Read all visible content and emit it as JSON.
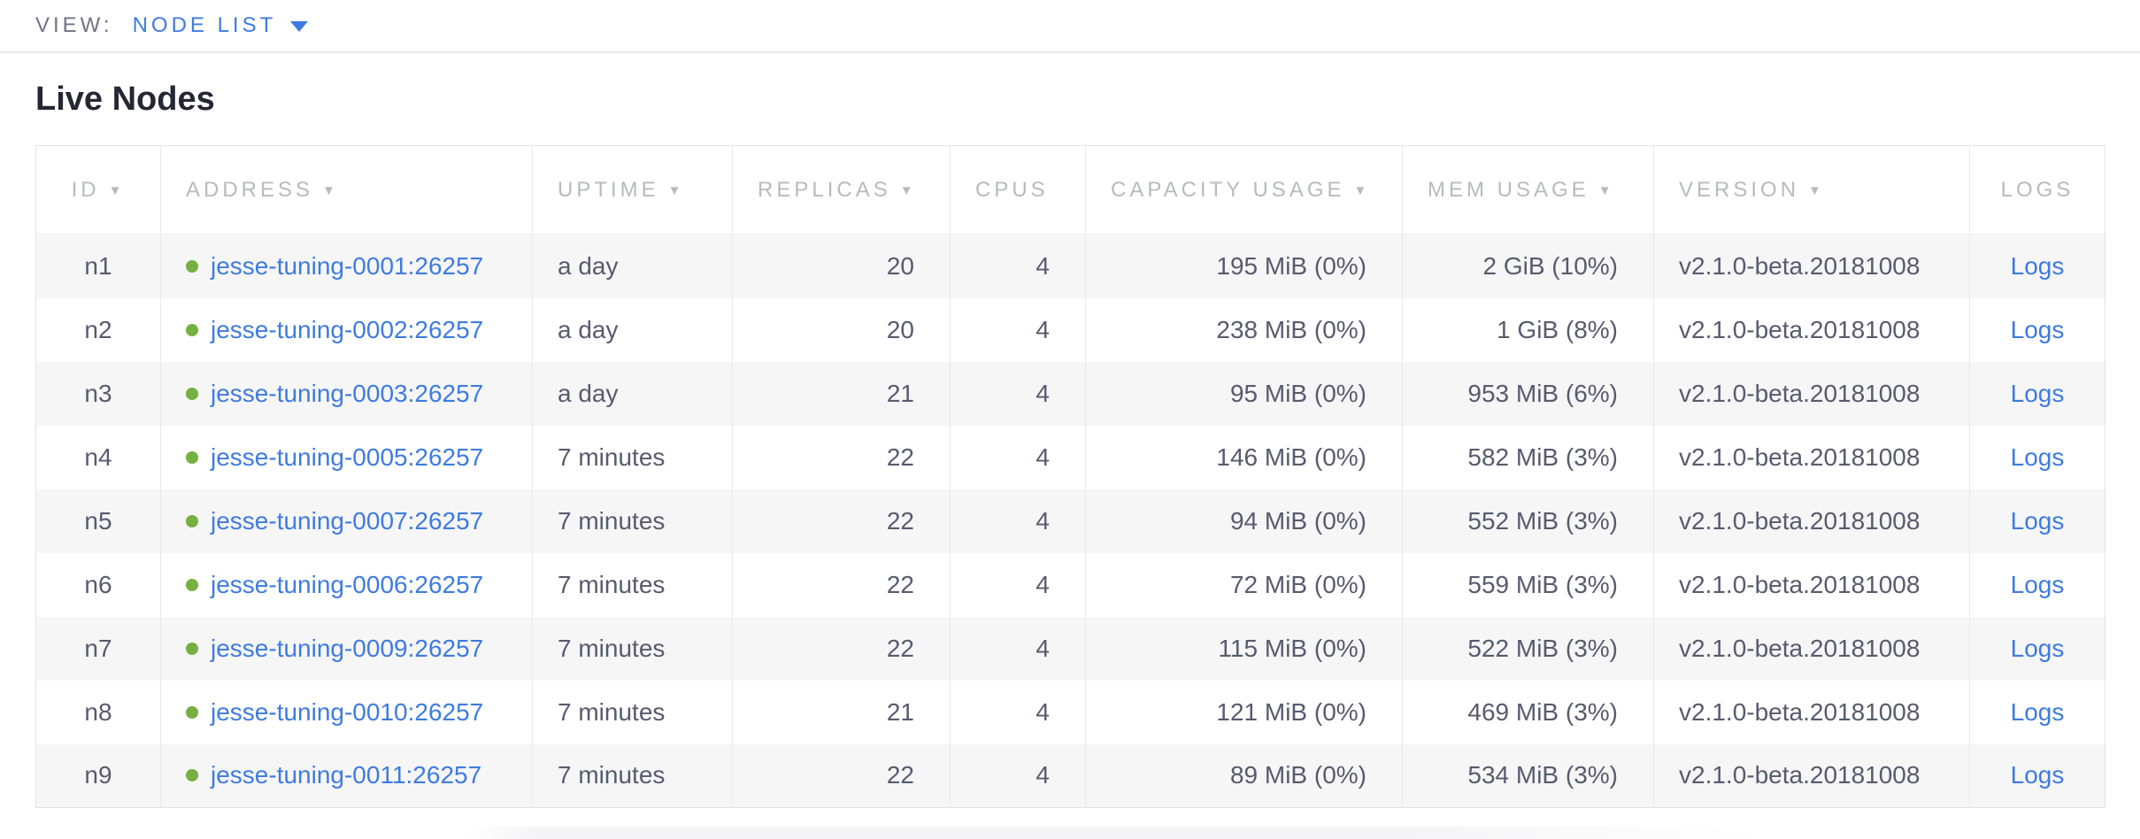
{
  "topbar": {
    "view_label": "VIEW:",
    "view_value": "NODE LIST"
  },
  "page_title": "Live Nodes",
  "icons": {
    "sort": "▼",
    "dropdown": "▼",
    "node_status": "green-dot"
  },
  "colors": {
    "link_blue": "#3e7be0",
    "healthy_dot_green": "#76b041",
    "row_stripe": "#f6f6f7",
    "header_text": "#b8babe",
    "body_text": "#565b6e"
  },
  "table": {
    "columns": [
      {
        "label": "ID",
        "key": "id",
        "align": "center",
        "header_align": "center",
        "sortable": true
      },
      {
        "label": "ADDRESS",
        "key": "address",
        "align": "left",
        "header_align": "left",
        "sortable": true
      },
      {
        "label": "UPTIME",
        "key": "uptime",
        "align": "left",
        "header_align": "left",
        "sortable": true
      },
      {
        "label": "REPLICAS",
        "key": "replicas",
        "align": "right",
        "header_align": "left",
        "sortable": true
      },
      {
        "label": "CPUS",
        "key": "cpus",
        "align": "right",
        "header_align": "left",
        "sortable": false
      },
      {
        "label": "CAPACITY USAGE",
        "key": "capacity_usage",
        "align": "right",
        "header_align": "left",
        "sortable": true
      },
      {
        "label": "MEM USAGE",
        "key": "mem_usage",
        "align": "right",
        "header_align": "left",
        "sortable": true
      },
      {
        "label": "VERSION",
        "key": "version",
        "align": "left",
        "header_align": "left",
        "sortable": true
      },
      {
        "label": "LOGS",
        "key": "logs",
        "align": "center",
        "header_align": "center",
        "sortable": false
      }
    ],
    "rows": [
      {
        "id": "n1",
        "status": "healthy",
        "address": "jesse-tuning-0001:26257",
        "uptime": "a day",
        "replicas": "20",
        "cpus": "4",
        "capacity_usage": "195 MiB (0%)",
        "mem_usage": "2 GiB (10%)",
        "version": "v2.1.0-beta.20181008",
        "logs": "Logs"
      },
      {
        "id": "n2",
        "status": "healthy",
        "address": "jesse-tuning-0002:26257",
        "uptime": "a day",
        "replicas": "20",
        "cpus": "4",
        "capacity_usage": "238 MiB (0%)",
        "mem_usage": "1 GiB (8%)",
        "version": "v2.1.0-beta.20181008",
        "logs": "Logs"
      },
      {
        "id": "n3",
        "status": "healthy",
        "address": "jesse-tuning-0003:26257",
        "uptime": "a day",
        "replicas": "21",
        "cpus": "4",
        "capacity_usage": "95 MiB (0%)",
        "mem_usage": "953 MiB (6%)",
        "version": "v2.1.0-beta.20181008",
        "logs": "Logs"
      },
      {
        "id": "n4",
        "status": "healthy",
        "address": "jesse-tuning-0005:26257",
        "uptime": "7 minutes",
        "replicas": "22",
        "cpus": "4",
        "capacity_usage": "146 MiB (0%)",
        "mem_usage": "582 MiB (3%)",
        "version": "v2.1.0-beta.20181008",
        "logs": "Logs"
      },
      {
        "id": "n5",
        "status": "healthy",
        "address": "jesse-tuning-0007:26257",
        "uptime": "7 minutes",
        "replicas": "22",
        "cpus": "4",
        "capacity_usage": "94 MiB (0%)",
        "mem_usage": "552 MiB (3%)",
        "version": "v2.1.0-beta.20181008",
        "logs": "Logs"
      },
      {
        "id": "n6",
        "status": "healthy",
        "address": "jesse-tuning-0006:26257",
        "uptime": "7 minutes",
        "replicas": "22",
        "cpus": "4",
        "capacity_usage": "72 MiB (0%)",
        "mem_usage": "559 MiB (3%)",
        "version": "v2.1.0-beta.20181008",
        "logs": "Logs"
      },
      {
        "id": "n7",
        "status": "healthy",
        "address": "jesse-tuning-0009:26257",
        "uptime": "7 minutes",
        "replicas": "22",
        "cpus": "4",
        "capacity_usage": "115 MiB (0%)",
        "mem_usage": "522 MiB (3%)",
        "version": "v2.1.0-beta.20181008",
        "logs": "Logs"
      },
      {
        "id": "n8",
        "status": "healthy",
        "address": "jesse-tuning-0010:26257",
        "uptime": "7 minutes",
        "replicas": "21",
        "cpus": "4",
        "capacity_usage": "121 MiB (0%)",
        "mem_usage": "469 MiB (3%)",
        "version": "v2.1.0-beta.20181008",
        "logs": "Logs"
      },
      {
        "id": "n9",
        "status": "healthy",
        "address": "jesse-tuning-0011:26257",
        "uptime": "7 minutes",
        "replicas": "22",
        "cpus": "4",
        "capacity_usage": "89 MiB (0%)",
        "mem_usage": "534 MiB (3%)",
        "version": "v2.1.0-beta.20181008",
        "logs": "Logs"
      }
    ]
  }
}
